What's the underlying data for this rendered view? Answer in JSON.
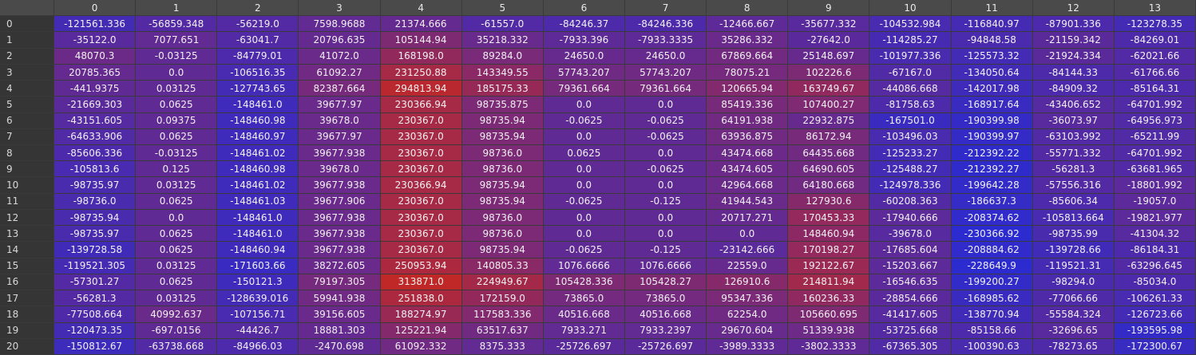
{
  "table": {
    "columns": [
      "0",
      "1",
      "2",
      "3",
      "4",
      "5",
      "6",
      "7",
      "8",
      "9",
      "10",
      "11",
      "12",
      "13"
    ],
    "row_labels": [
      "0",
      "1",
      "2",
      "3",
      "4",
      "5",
      "6",
      "7",
      "8",
      "9",
      "10",
      "11",
      "12",
      "13",
      "14",
      "15",
      "16",
      "17",
      "18",
      "19",
      "20"
    ],
    "rows": [
      [
        "-121561.336",
        "-56859.348",
        "-56219.0",
        "7598.9688",
        "21374.666",
        "-61557.0",
        "-84246.37",
        "-84246.336",
        "-12466.667",
        "-35677.332",
        "-104532.984",
        "-116840.97",
        "-87901.336",
        "-123278.35"
      ],
      [
        "-35122.0",
        "7077.651",
        "-63041.7",
        "20796.635",
        "105144.94",
        "35218.332",
        "-7933.396",
        "-7933.3335",
        "35286.332",
        "-27642.0",
        "-114285.27",
        "-94848.58",
        "-21159.342",
        "-84269.01"
      ],
      [
        "48070.3",
        "-0.03125",
        "-84779.01",
        "41072.0",
        "168198.0",
        "89284.0",
        "24650.0",
        "24650.0",
        "67869.664",
        "25148.697",
        "-101977.336",
        "-125573.32",
        "-21924.334",
        "-62021.66"
      ],
      [
        "20785.365",
        "0.0",
        "-106516.35",
        "61092.27",
        "231250.88",
        "143349.55",
        "57743.207",
        "57743.207",
        "78075.21",
        "102226.6",
        "-67167.0",
        "-134050.64",
        "-84144.33",
        "-61766.66"
      ],
      [
        "-441.9375",
        "0.03125",
        "-127743.65",
        "82387.664",
        "294813.94",
        "185175.33",
        "79361.664",
        "79361.664",
        "120665.94",
        "163749.67",
        "-44086.668",
        "-142017.98",
        "-84909.32",
        "-85164.31"
      ],
      [
        "-21669.303",
        "0.0625",
        "-148461.0",
        "39677.97",
        "230366.94",
        "98735.875",
        "0.0",
        "0.0",
        "85419.336",
        "107400.27",
        "-81758.63",
        "-168917.64",
        "-43406.652",
        "-64701.992"
      ],
      [
        "-43151.605",
        "0.09375",
        "-148460.98",
        "39678.0",
        "230367.0",
        "98735.94",
        "-0.0625",
        "-0.0625",
        "64191.938",
        "22932.875",
        "-167501.0",
        "-190399.98",
        "-36073.97",
        "-64956.973"
      ],
      [
        "-64633.906",
        "0.0625",
        "-148460.97",
        "39677.97",
        "230367.0",
        "98735.94",
        "0.0",
        "-0.0625",
        "63936.875",
        "86172.94",
        "-103496.03",
        "-190399.97",
        "-63103.992",
        "-65211.99"
      ],
      [
        "-85606.336",
        "-0.03125",
        "-148461.02",
        "39677.938",
        "230367.0",
        "98736.0",
        "0.0625",
        "0.0",
        "43474.668",
        "64435.668",
        "-125233.27",
        "-212392.22",
        "-55771.332",
        "-64701.992"
      ],
      [
        "-105813.6",
        "0.125",
        "-148460.98",
        "39678.0",
        "230367.0",
        "98736.0",
        "0.0",
        "-0.0625",
        "43474.605",
        "64690.605",
        "-125488.27",
        "-212392.27",
        "-56281.3",
        "-63681.965"
      ],
      [
        "-98735.97",
        "0.03125",
        "-148461.02",
        "39677.938",
        "230366.94",
        "98735.94",
        "0.0",
        "0.0",
        "42964.668",
        "64180.668",
        "-124978.336",
        "-199642.28",
        "-57556.316",
        "-18801.992"
      ],
      [
        "-98736.0",
        "0.0625",
        "-148461.03",
        "39677.906",
        "230367.0",
        "98735.94",
        "-0.0625",
        "-0.125",
        "41944.543",
        "127930.6",
        "-60208.363",
        "-186637.3",
        "-85606.34",
        "-19057.0"
      ],
      [
        "-98735.94",
        "0.0",
        "-148461.0",
        "39677.938",
        "230367.0",
        "98736.0",
        "0.0",
        "0.0",
        "20717.271",
        "170453.33",
        "-17940.666",
        "-208374.62",
        "-105813.664",
        "-19821.977"
      ],
      [
        "-98735.97",
        "0.0625",
        "-148461.0",
        "39677.938",
        "230367.0",
        "98736.0",
        "0.0",
        "0.0",
        "0.0",
        "148460.94",
        "-39678.0",
        "-230366.92",
        "-98735.99",
        "-41304.32"
      ],
      [
        "-139728.58",
        "0.0625",
        "-148460.94",
        "39677.938",
        "230367.0",
        "98735.94",
        "-0.0625",
        "-0.125",
        "-23142.666",
        "170198.27",
        "-17685.604",
        "-208884.62",
        "-139728.66",
        "-86184.31"
      ],
      [
        "-119521.305",
        "0.03125",
        "-171603.66",
        "38272.605",
        "250953.94",
        "140805.33",
        "1076.6666",
        "1076.6666",
        "22559.0",
        "192122.67",
        "-15203.667",
        "-228649.9",
        "-119521.31",
        "-63296.645"
      ],
      [
        "-57301.27",
        "0.0625",
        "-150121.3",
        "79197.305",
        "313871.0",
        "224949.67",
        "105428.336",
        "105428.27",
        "126910.6",
        "214811.94",
        "-16546.635",
        "-199200.27",
        "-98294.0",
        "-85034.0"
      ],
      [
        "-56281.3",
        "0.03125",
        "-128639.016",
        "59941.938",
        "251838.0",
        "172159.0",
        "73865.0",
        "73865.0",
        "95347.336",
        "160236.33",
        "-28854.666",
        "-168985.62",
        "-77066.66",
        "-106261.33"
      ],
      [
        "-77508.664",
        "40992.637",
        "-107156.71",
        "39156.605",
        "188274.97",
        "117583.336",
        "40516.668",
        "40516.668",
        "62254.0",
        "105660.695",
        "-41417.605",
        "-138770.94",
        "-55584.324",
        "-126723.66"
      ],
      [
        "-120473.35",
        "-697.0156",
        "-44426.7",
        "18881.303",
        "125221.94",
        "63517.637",
        "7933.271",
        "7933.2397",
        "29670.604",
        "51339.938",
        "-53725.668",
        "-85158.66",
        "-32696.65",
        "-193595.98"
      ],
      [
        "-150812.67",
        "-63738.668",
        "-84966.03",
        "-2470.698",
        "61092.332",
        "8375.333",
        "-25726.697",
        "-25726.697",
        "-3989.3333",
        "-3802.3333",
        "-67365.305",
        "-100390.63",
        "-78273.65",
        "-172300.67"
      ]
    ]
  },
  "colors": {
    "header_bg": "#4a4a4a",
    "row_header_bg": "#353535",
    "low": "#2b2bd0",
    "mid": "#6a2a8a",
    "high": "#c02828"
  }
}
